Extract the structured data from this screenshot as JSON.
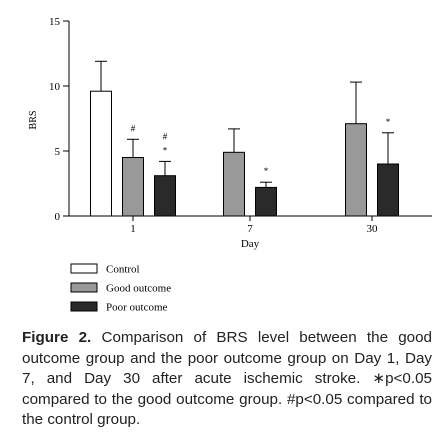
{
  "chart_data": {
    "type": "bar",
    "ylabel": "BRS",
    "xlabel": "Day",
    "ylim": [
      0,
      15
    ],
    "yticks": [
      0,
      5,
      10,
      15
    ],
    "categories": [
      "1",
      "7",
      "30"
    ],
    "series": [
      {
        "name": "Control",
        "color": "#ffffff",
        "values": [
          9.6,
          null,
          null
        ],
        "errors": [
          2.3,
          null,
          null
        ],
        "markers": [
          "",
          "",
          ""
        ]
      },
      {
        "name": "Good outcome",
        "color": "#999999",
        "values": [
          4.5,
          4.9,
          7.1
        ],
        "errors": [
          1.4,
          1.8,
          3.2
        ],
        "markers": [
          "#",
          "",
          ""
        ]
      },
      {
        "name": "Poor outcome",
        "color": "#2a2a2a",
        "values": [
          3.1,
          2.2,
          4.0
        ],
        "errors": [
          1.1,
          0.4,
          2.4
        ],
        "markers": [
          "# *",
          "*",
          "*"
        ]
      }
    ],
    "grid": false,
    "legend": "bottom-left"
  },
  "caption": {
    "label": "Figure 2.",
    "text": " Comparison of BRS level between the good outcome group and the poor outcome group on Day 1, Day 7, and Day 30 after acute ischemic stroke. ∗p<0.05 compared to the good outcome group. #p<0.05 compared to the control group."
  }
}
